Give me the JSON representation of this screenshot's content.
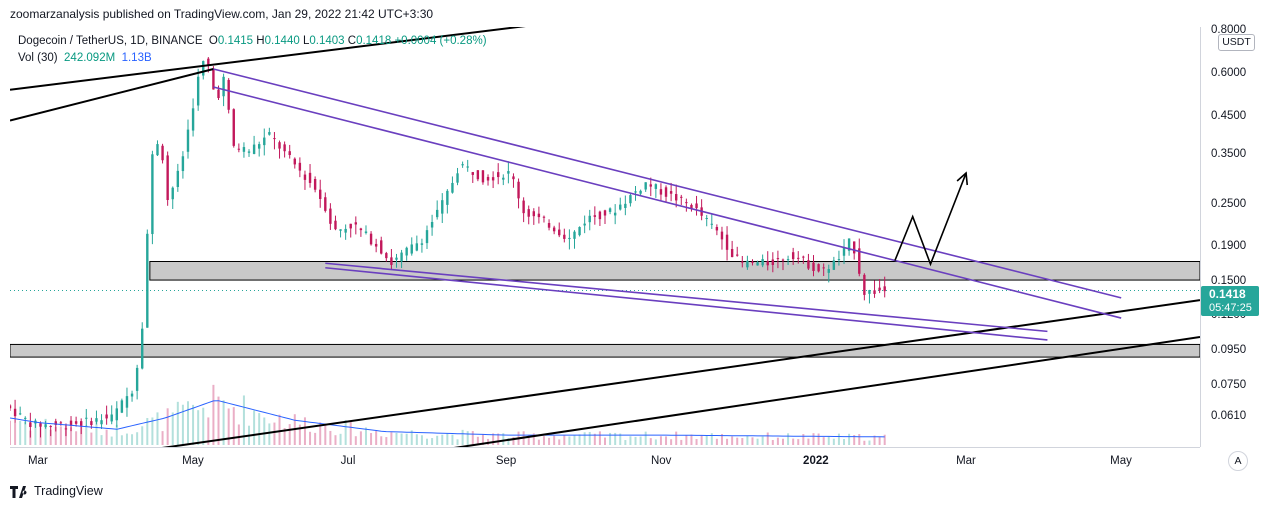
{
  "header": {
    "publisher_line": "zoomarzanalysis published on TradingView.com, Jan 29, 2022 21:42 UTC+3:30"
  },
  "legend": {
    "symbol": "Dogecoin / TetherUS, 1D, BINANCE",
    "open_label": "O",
    "open": "0.1415",
    "high_label": "H",
    "high": "0.1440",
    "low_label": "L",
    "low": "0.1403",
    "close_label": "C",
    "close": "0.1418",
    "change": "+0.0004 (+0.28%)",
    "vol_label": "Vol (30)",
    "vol": "242.092M",
    "vol_ma": "1.13B"
  },
  "price_axis": {
    "currency": "USDT",
    "current_price": "0.1418",
    "countdown": "05:47:25"
  },
  "footer": {
    "brand": "TradingView",
    "auto_label": "A"
  },
  "colors": {
    "up": "#26a69a",
    "down": "#c2185b",
    "channel": "#6a3fbf",
    "trendline": "#000000",
    "zone": "#c9c9c9",
    "volume_ma": "#2962ff"
  },
  "chart_data": {
    "type": "candlestick",
    "title": "",
    "y_scale": "log",
    "ylim": [
      0.05,
      0.82
    ],
    "xlim": [
      "2021-02-18",
      "2022-06-01"
    ],
    "y_ticks": [
      {
        "value": 0.8,
        "label": "0.8000"
      },
      {
        "value": 0.6,
        "label": "0.6000"
      },
      {
        "value": 0.45,
        "label": "0.4500"
      },
      {
        "value": 0.35,
        "label": "0.3500"
      },
      {
        "value": 0.25,
        "label": "0.2500"
      },
      {
        "value": 0.19,
        "label": "0.1900"
      },
      {
        "value": 0.15,
        "label": "0.1500"
      },
      {
        "value": 0.12,
        "label": "0.1200"
      },
      {
        "value": 0.095,
        "label": "0.0950"
      },
      {
        "value": 0.075,
        "label": "0.0750"
      },
      {
        "value": 0.061,
        "label": "0.0610"
      }
    ],
    "x_ticks": [
      {
        "date": "2021-03-01",
        "label": "Mar"
      },
      {
        "date": "2021-05-01",
        "label": "May"
      },
      {
        "date": "2021-07-01",
        "label": "Jul"
      },
      {
        "date": "2021-09-01",
        "label": "Sep"
      },
      {
        "date": "2021-11-01",
        "label": "Nov"
      },
      {
        "date": "2022-01-01",
        "label": "2022",
        "bold": true
      },
      {
        "date": "2022-03-01",
        "label": "Mar"
      },
      {
        "date": "2022-05-01",
        "label": "May"
      }
    ],
    "price_path": [
      [
        "2021-02-18",
        0.066
      ],
      [
        "2021-03-01",
        0.058
      ],
      [
        "2021-03-15",
        0.058
      ],
      [
        "2021-04-01",
        0.061
      ],
      [
        "2021-04-10",
        0.075
      ],
      [
        "2021-04-14",
        0.13
      ],
      [
        "2021-04-16",
        0.33
      ],
      [
        "2021-04-20",
        0.4
      ],
      [
        "2021-04-23",
        0.26
      ],
      [
        "2021-04-28",
        0.32
      ],
      [
        "2021-05-05",
        0.58
      ],
      [
        "2021-05-08",
        0.68
      ],
      [
        "2021-05-12",
        0.5
      ],
      [
        "2021-05-15",
        0.58
      ],
      [
        "2021-05-19",
        0.37
      ],
      [
        "2021-05-25",
        0.36
      ],
      [
        "2021-06-02",
        0.4
      ],
      [
        "2021-06-10",
        0.34
      ],
      [
        "2021-06-20",
        0.28
      ],
      [
        "2021-06-25",
        0.24
      ],
      [
        "2021-06-27",
        0.21
      ],
      [
        "2021-07-05",
        0.22
      ],
      [
        "2021-07-15",
        0.19
      ],
      [
        "2021-07-20",
        0.17
      ],
      [
        "2021-08-01",
        0.2
      ],
      [
        "2021-08-10",
        0.26
      ],
      [
        "2021-08-16",
        0.33
      ],
      [
        "2021-08-25",
        0.3
      ],
      [
        "2021-09-05",
        0.31
      ],
      [
        "2021-09-10",
        0.24
      ],
      [
        "2021-09-20",
        0.22
      ],
      [
        "2021-09-28",
        0.2
      ],
      [
        "2021-10-05",
        0.23
      ],
      [
        "2021-10-15",
        0.24
      ],
      [
        "2021-10-28",
        0.29
      ],
      [
        "2021-11-05",
        0.27
      ],
      [
        "2021-11-15",
        0.25
      ],
      [
        "2021-11-25",
        0.21
      ],
      [
        "2021-12-04",
        0.17
      ],
      [
        "2021-12-15",
        0.17
      ],
      [
        "2021-12-25",
        0.18
      ],
      [
        "2022-01-05",
        0.16
      ],
      [
        "2022-01-12",
        0.175
      ],
      [
        "2022-01-17",
        0.2
      ],
      [
        "2022-01-22",
        0.14
      ],
      [
        "2022-01-29",
        0.1418
      ]
    ],
    "candle_stride_days": 2,
    "volume_ma_path": [
      [
        "2021-02-18",
        0.6
      ],
      [
        "2021-03-01",
        0.5
      ],
      [
        "2021-04-01",
        0.35
      ],
      [
        "2021-04-20",
        0.6
      ],
      [
        "2021-05-10",
        1.0
      ],
      [
        "2021-06-10",
        0.55
      ],
      [
        "2021-07-15",
        0.3
      ],
      [
        "2021-09-01",
        0.22
      ],
      [
        "2021-11-01",
        0.22
      ],
      [
        "2022-01-29",
        0.18
      ]
    ],
    "trendlines": [
      {
        "kind": "resistance-channel-top",
        "start": [
          "2021-02-18",
          0.54
        ],
        "end": [
          "2021-11-15",
          0.95
        ],
        "color": "#000000"
      },
      {
        "kind": "resistance-channel-low",
        "start": [
          "2021-02-18",
          0.44
        ],
        "end": [
          "2021-05-09",
          0.62
        ],
        "color": "#000000"
      },
      {
        "kind": "support-rising-1",
        "start": [
          "2021-02-18",
          0.043
        ],
        "end": [
          "2022-06-01",
          0.133
        ],
        "color": "#000000"
      },
      {
        "kind": "support-rising-2",
        "start": [
          "2021-02-18",
          0.032
        ],
        "end": [
          "2022-06-01",
          0.104
        ],
        "color": "#000000"
      },
      {
        "kind": "wedge-upper-1",
        "start": [
          "2021-05-09",
          0.62
        ],
        "end": [
          "2022-05-01",
          0.135
        ],
        "color": "#6a3fbf"
      },
      {
        "kind": "wedge-upper-2",
        "start": [
          "2021-05-09",
          0.55
        ],
        "end": [
          "2022-05-01",
          0.118
        ],
        "color": "#6a3fbf"
      },
      {
        "kind": "wedge-lower-1",
        "start": [
          "2021-06-22",
          0.17
        ],
        "end": [
          "2022-04-02",
          0.108
        ],
        "color": "#6a3fbf"
      },
      {
        "kind": "wedge-lower-2",
        "start": [
          "2021-06-22",
          0.165
        ],
        "end": [
          "2022-04-02",
          0.102
        ],
        "color": "#6a3fbf"
      }
    ],
    "zones": [
      {
        "from": "2021-04-14",
        "to": "2022-06-01",
        "low": 0.152,
        "high": 0.172
      },
      {
        "from": "2021-02-18",
        "to": "2022-06-01",
        "low": 0.091,
        "high": 0.099
      }
    ],
    "projection_path": [
      [
        "2022-02-01",
        0.173
      ],
      [
        "2022-02-08",
        0.232
      ],
      [
        "2022-02-15",
        0.169
      ],
      [
        "2022-03-01",
        0.31
      ]
    ],
    "current_price": 0.1418,
    "legend": []
  }
}
